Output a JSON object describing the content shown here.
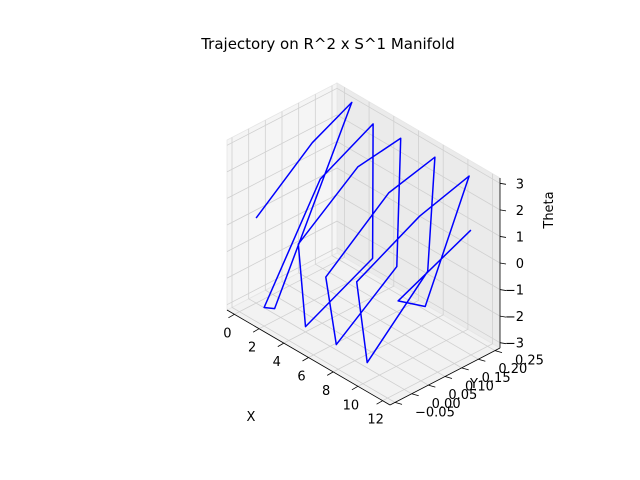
{
  "chart_data": {
    "type": "line3d",
    "title": "Trajectory on R^2 x S^1 Manifold",
    "xlabel": "X",
    "ylabel": "Y",
    "zlabel": "Theta",
    "xlim": [
      -0.6,
      12.6
    ],
    "ylim": [
      -0.065,
      0.265
    ],
    "zlim": [
      -3.2,
      3.2
    ],
    "x_ticks": [
      0,
      2,
      4,
      6,
      8,
      10,
      12
    ],
    "y_ticks": [
      -0.05,
      0.0,
      0.05,
      0.1,
      0.15,
      0.2,
      0.25
    ],
    "y_tick_labels": [
      "−0.05",
      "0.00",
      "0.05",
      "0.10",
      "0.15",
      "0.20",
      "0.25"
    ],
    "z_ticks": [
      -3,
      -2,
      -1,
      0,
      1,
      2,
      3
    ],
    "z_tick_labels": [
      "−3",
      "−2",
      "−1",
      "0",
      "1",
      "2",
      "3"
    ],
    "grid": true,
    "series": [
      {
        "color": "#0000ff",
        "points": {
          "x": [
            0.0,
            0.5,
            1.0,
            1.5,
            2.0,
            2.5,
            3.0,
            3.5,
            4.0,
            4.5,
            5.0,
            5.5,
            6.0,
            6.5,
            7.0,
            7.5,
            8.0,
            8.5,
            9.0,
            9.5,
            10.0,
            10.5,
            11.0,
            11.5,
            12.0
          ],
          "y": [
            0.0,
            0.15,
            0.25,
            0.0,
            -0.05,
            0.1,
            0.24,
            0.22,
            0.0,
            -0.04,
            0.12,
            0.23,
            0.2,
            0.0,
            -0.05,
            0.12,
            0.24,
            0.2,
            0.0,
            -0.05,
            0.12,
            0.25,
            0.1,
            0.0,
            0.2
          ],
          "z": [
            0.0,
            2.0,
            3.0,
            -3.0,
            -2.5,
            1.5,
            2.8,
            -2.0,
            -3.0,
            0.5,
            2.5,
            3.0,
            -1.5,
            -3.0,
            0.0,
            2.2,
            2.9,
            -1.0,
            -3.0,
            0.5,
            2.0,
            2.8,
            -1.0,
            0.0,
            1.5
          ]
        }
      }
    ]
  }
}
